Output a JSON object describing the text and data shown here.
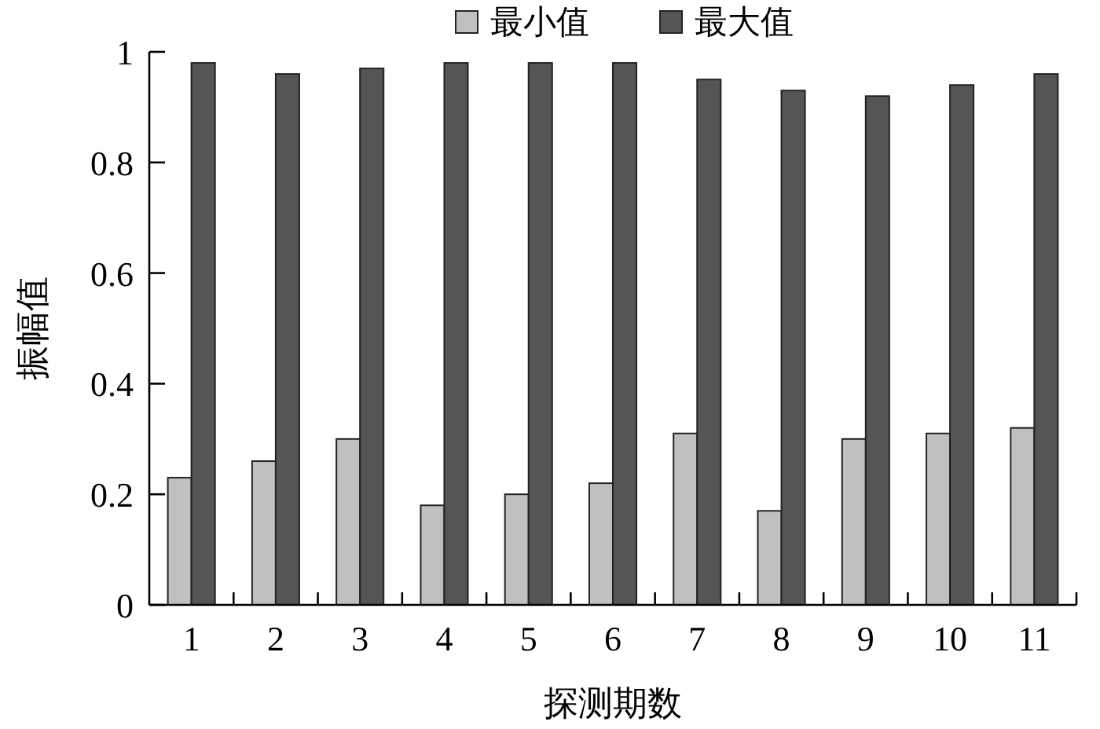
{
  "chart_data": {
    "type": "bar",
    "xlabel": "探测期数",
    "ylabel": "振幅值",
    "categories": [
      "1",
      "2",
      "3",
      "4",
      "5",
      "6",
      "7",
      "8",
      "9",
      "10",
      "11"
    ],
    "series": [
      {
        "name": "最小值",
        "color": "#c0c0c0",
        "values": [
          0.23,
          0.26,
          0.3,
          0.18,
          0.2,
          0.22,
          0.31,
          0.17,
          0.3,
          0.31,
          0.32
        ]
      },
      {
        "name": "最大值",
        "color": "#555555",
        "values": [
          0.98,
          0.96,
          0.97,
          0.98,
          0.98,
          0.98,
          0.95,
          0.93,
          0.92,
          0.94,
          0.96
        ]
      }
    ],
    "ylim": [
      0,
      1
    ],
    "yticks": [
      0,
      0.2,
      0.4,
      0.6,
      0.8,
      1
    ],
    "legend": "top"
  }
}
